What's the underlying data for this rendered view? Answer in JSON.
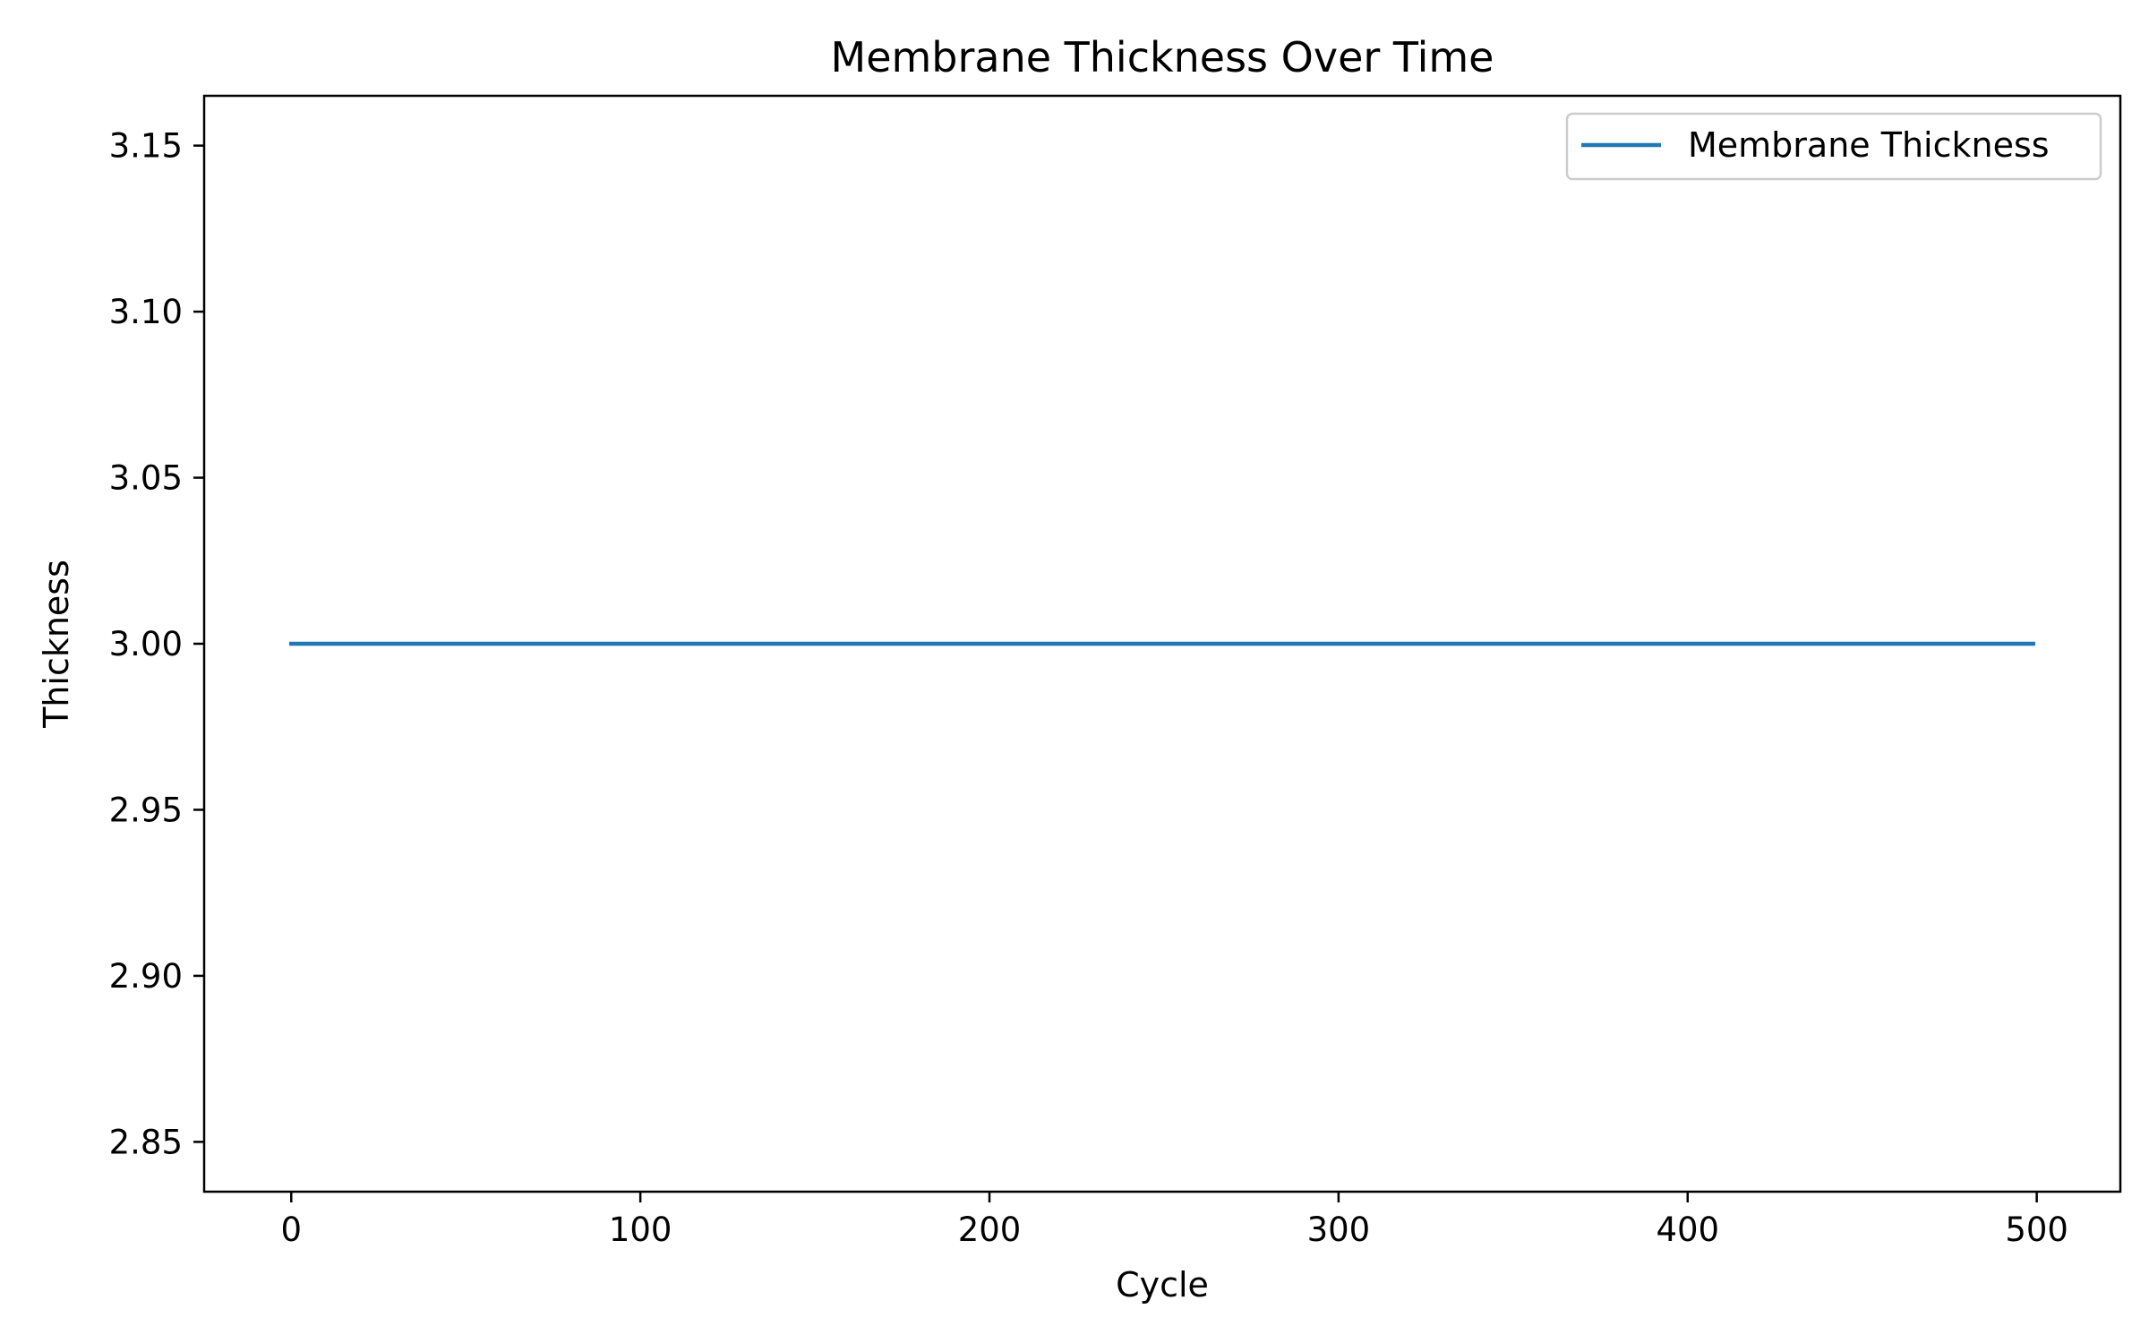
{
  "chart_data": {
    "type": "line",
    "title": "Membrane Thickness Over Time",
    "xlabel": "Cycle",
    "ylabel": "Thickness",
    "xlim": [
      -24.95,
      523.95
    ],
    "ylim": [
      2.835,
      3.165
    ],
    "xticks": [
      "0",
      "100",
      "200",
      "300",
      "400",
      "500"
    ],
    "yticks": [
      "2.85",
      "2.90",
      "2.95",
      "3.00",
      "3.05",
      "3.10",
      "3.15"
    ],
    "grid": false,
    "legend_position": "top-right",
    "series": [
      {
        "name": "Membrane Thickness",
        "color": "#1f77b4",
        "x": [
          0,
          499
        ],
        "y": [
          3.0,
          3.0
        ]
      }
    ]
  }
}
